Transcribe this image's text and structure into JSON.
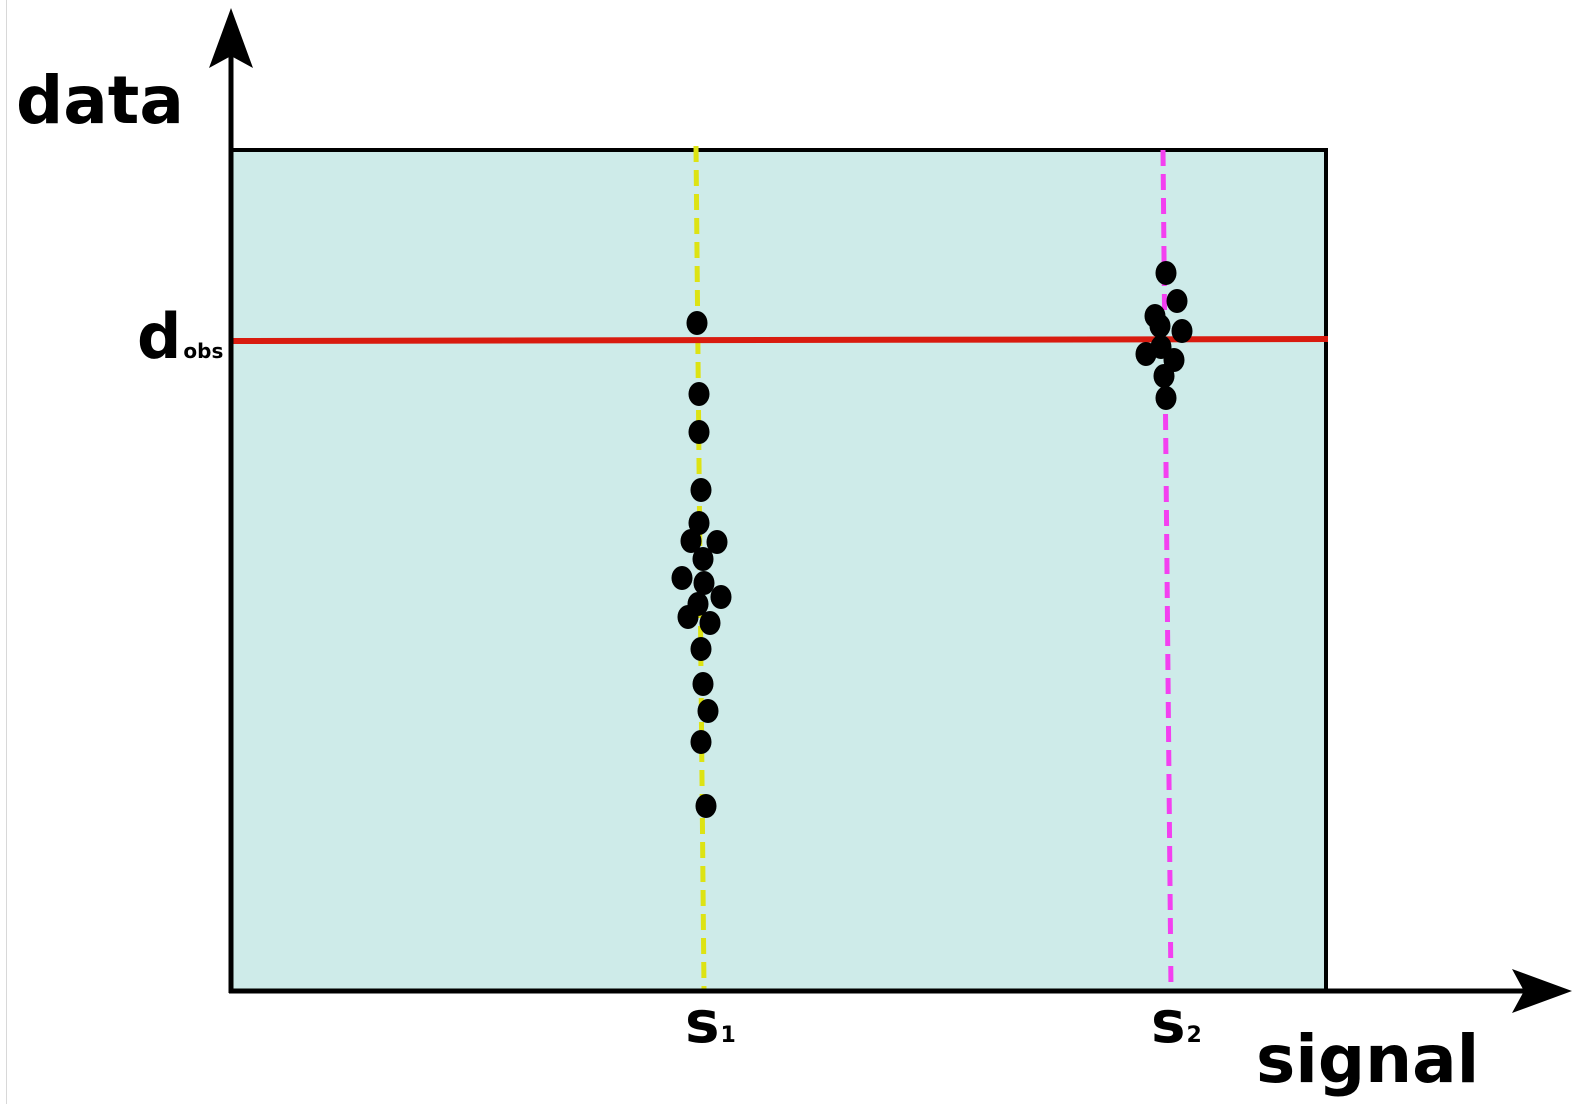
{
  "labels": {
    "y_axis": "data",
    "x_axis": "signal",
    "observed_main": "d",
    "observed_sub": "obs",
    "signal1_main": "s",
    "signal1_sub": "1",
    "signal2_main": "s",
    "signal2_sub": "2"
  },
  "colors": {
    "region_fill": "#ceebe9",
    "observed_line": "#d81b0f",
    "signal1_line": "#dde313",
    "signal2_line": "#f340f0",
    "points": "#000000",
    "axes": "#000000"
  }
}
